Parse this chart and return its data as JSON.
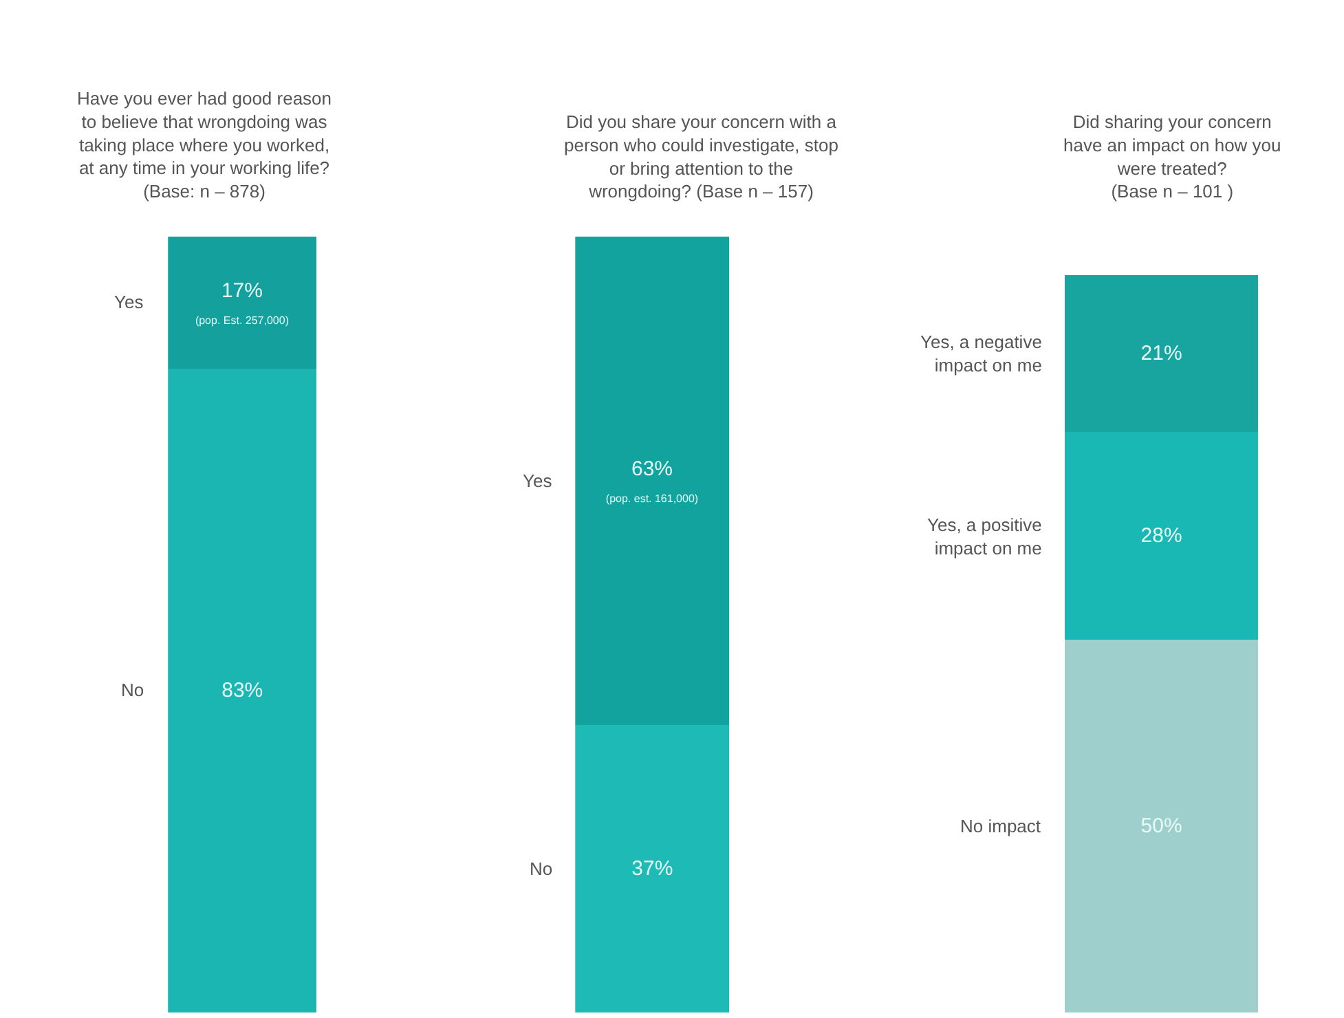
{
  "chart_data": [
    {
      "type": "bar",
      "stacked": true,
      "title": "Have you ever had good reason\nto believe that wrongdoing was\ntaking place where you worked,\nat any time in your working life?\n(Base: n – 878)",
      "categories": [
        null
      ],
      "ylim": [
        0,
        100
      ],
      "tick_labels": false,
      "legend": false,
      "series": [
        {
          "name": "No",
          "color": "#1bb5b2",
          "values": [
            83
          ],
          "value_labels": [
            "83%"
          ]
        },
        {
          "name": "Yes",
          "color": "#14a09c",
          "values": [
            17
          ],
          "value_labels": [
            "17%\n(pop. Est. 257,000)"
          ]
        }
      ]
    },
    {
      "type": "bar",
      "stacked": true,
      "title": "Did you share your concern with a\nperson who could investigate, stop\nor bring attention to the\nwrongdoing? (Base n – 157)",
      "categories": [
        null
      ],
      "ylim": [
        0,
        100
      ],
      "tick_labels": false,
      "legend": false,
      "series": [
        {
          "name": "No",
          "color": "#1dbab6",
          "values": [
            37
          ],
          "value_labels": [
            "37%"
          ]
        },
        {
          "name": "Yes",
          "color": "#13a39f",
          "values": [
            63
          ],
          "value_labels": [
            "63%\n(pop. est. 161,000)"
          ]
        }
      ]
    },
    {
      "type": "bar",
      "stacked": true,
      "title": "Did sharing your concern\nhave an impact on how you\nwere treated?\n(Base n – 101 )",
      "categories": [
        null
      ],
      "tick_labels": false,
      "legend": false,
      "series": [
        {
          "name": "No impact",
          "color": "#9fcfcc",
          "values": [
            50
          ],
          "value_labels": [
            "50%"
          ]
        },
        {
          "name": "Yes, a positive\nimpact on me",
          "color": "#1ab8b4",
          "values": [
            28
          ],
          "value_labels": [
            "28%"
          ]
        },
        {
          "name": "Yes, a negative\nimpact on me",
          "color": "#18a5a0",
          "values": [
            21
          ],
          "value_labels": [
            "21%"
          ]
        }
      ]
    }
  ]
}
